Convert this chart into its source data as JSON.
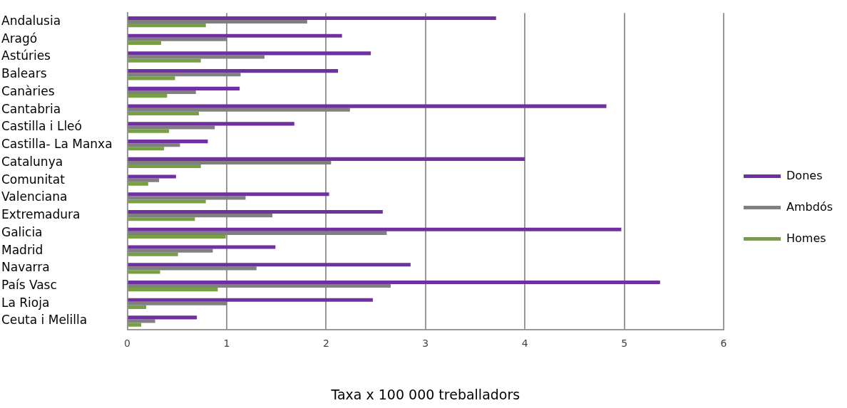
{
  "chart_data": {
    "type": "bar",
    "orientation": "horizontal",
    "xlabel": "Taxa x 100 000 treballadors",
    "categories": [
      "Andalusia",
      "Aragó",
      "Astúries",
      "Balears",
      "Canàries",
      "Cantabria",
      "Castilla i Lleó",
      "Castilla- La Manxa",
      "Catalunya",
      "Comunitat",
      "Valenciana",
      "Extremadura",
      "Galicia",
      "Madrid",
      "Navarra",
      "País Vasc",
      "La Rioja",
      "Ceuta i Melilla"
    ],
    "series": [
      {
        "name": "Dones",
        "color": "#7030a0",
        "values": [
          3.71,
          2.16,
          2.45,
          2.12,
          1.13,
          4.82,
          1.68,
          0.81,
          4.0,
          0.49,
          2.03,
          2.57,
          4.97,
          1.49,
          2.85,
          5.36,
          2.47,
          0.7
        ]
      },
      {
        "name": "Ambdós",
        "color": "#808080",
        "values": [
          1.81,
          1.0,
          1.38,
          1.14,
          0.69,
          2.24,
          0.88,
          0.53,
          2.05,
          0.32,
          1.19,
          1.46,
          2.61,
          0.86,
          1.3,
          2.65,
          1.0,
          0.28
        ]
      },
      {
        "name": "Homes",
        "color": "#77a043",
        "values": [
          0.79,
          0.34,
          0.74,
          0.48,
          0.4,
          0.72,
          0.42,
          0.37,
          0.74,
          0.21,
          0.79,
          0.68,
          0.99,
          0.51,
          0.33,
          0.91,
          0.19,
          0.14
        ]
      }
    ],
    "xlim": [
      0,
      6
    ],
    "xticks": [
      0,
      1,
      2,
      3,
      4,
      5,
      6
    ],
    "grid": "x",
    "legend": "right"
  }
}
